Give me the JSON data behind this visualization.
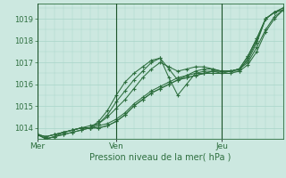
{
  "xlabel": "Pression niveau de la mer( hPa )",
  "bg_color": "#cce8e0",
  "grid_color": "#a8d5c8",
  "line_color": "#2d6e3e",
  "dark_line_color": "#1a5228",
  "ylim": [
    1013.5,
    1019.7
  ],
  "day_labels": [
    "Mer",
    "Ven",
    "Jeu"
  ],
  "day_positions": [
    0,
    9,
    21
  ],
  "n_points": 29,
  "xlim": [
    0,
    28
  ],
  "lines": [
    [
      1013.7,
      1013.6,
      1013.7,
      1013.8,
      1013.9,
      1014.0,
      1014.0,
      1014.0,
      1014.1,
      1014.3,
      1014.6,
      1015.0,
      1015.3,
      1015.6,
      1015.8,
      1016.0,
      1016.2,
      1016.3,
      1016.4,
      1016.5,
      1016.5,
      1016.5,
      1016.6,
      1016.6,
      1017.2,
      1018.0,
      1019.0,
      1019.3,
      1019.4
    ],
    [
      1013.7,
      1013.6,
      1013.7,
      1013.8,
      1013.9,
      1014.0,
      1014.0,
      1014.0,
      1014.1,
      1014.3,
      1014.6,
      1015.0,
      1015.3,
      1015.6,
      1015.8,
      1016.0,
      1016.2,
      1016.3,
      1016.4,
      1016.5,
      1016.6,
      1016.6,
      1016.6,
      1016.7,
      1017.3,
      1018.1,
      1019.0,
      1019.3,
      1019.5
    ],
    [
      1013.7,
      1013.6,
      1013.7,
      1013.8,
      1013.9,
      1014.0,
      1014.0,
      1014.1,
      1014.2,
      1014.4,
      1014.7,
      1015.1,
      1015.4,
      1015.7,
      1015.9,
      1016.1,
      1016.3,
      1016.4,
      1016.5,
      1016.5,
      1016.6,
      1016.6,
      1016.6,
      1016.7,
      1017.3,
      1018.1,
      1019.0,
      1019.3,
      1019.5
    ],
    [
      1013.7,
      1013.5,
      1013.6,
      1013.8,
      1013.9,
      1014.0,
      1014.1,
      1014.2,
      1014.5,
      1014.9,
      1015.3,
      1015.8,
      1016.3,
      1016.7,
      1017.0,
      1016.8,
      1016.6,
      1016.7,
      1016.8,
      1016.8,
      1016.7,
      1016.6,
      1016.6,
      1016.7,
      1017.1,
      1017.9,
      1019.0,
      1019.3,
      1019.4
    ],
    [
      1013.7,
      1013.5,
      1013.6,
      1013.7,
      1013.8,
      1013.9,
      1014.0,
      1014.2,
      1014.6,
      1015.2,
      1015.7,
      1016.2,
      1016.6,
      1017.0,
      1017.2,
      1016.7,
      1016.2,
      1016.4,
      1016.6,
      1016.7,
      1016.7,
      1016.6,
      1016.6,
      1016.7,
      1017.0,
      1017.7,
      1018.5,
      1019.1,
      1019.4
    ],
    [
      1013.7,
      1013.5,
      1013.6,
      1013.7,
      1013.8,
      1013.9,
      1014.0,
      1014.3,
      1014.8,
      1015.5,
      1016.1,
      1016.5,
      1016.8,
      1017.1,
      1017.2,
      1016.3,
      1015.5,
      1016.0,
      1016.5,
      1016.6,
      1016.6,
      1016.5,
      1016.5,
      1016.6,
      1016.9,
      1017.5,
      1018.4,
      1019.0,
      1019.4
    ]
  ]
}
